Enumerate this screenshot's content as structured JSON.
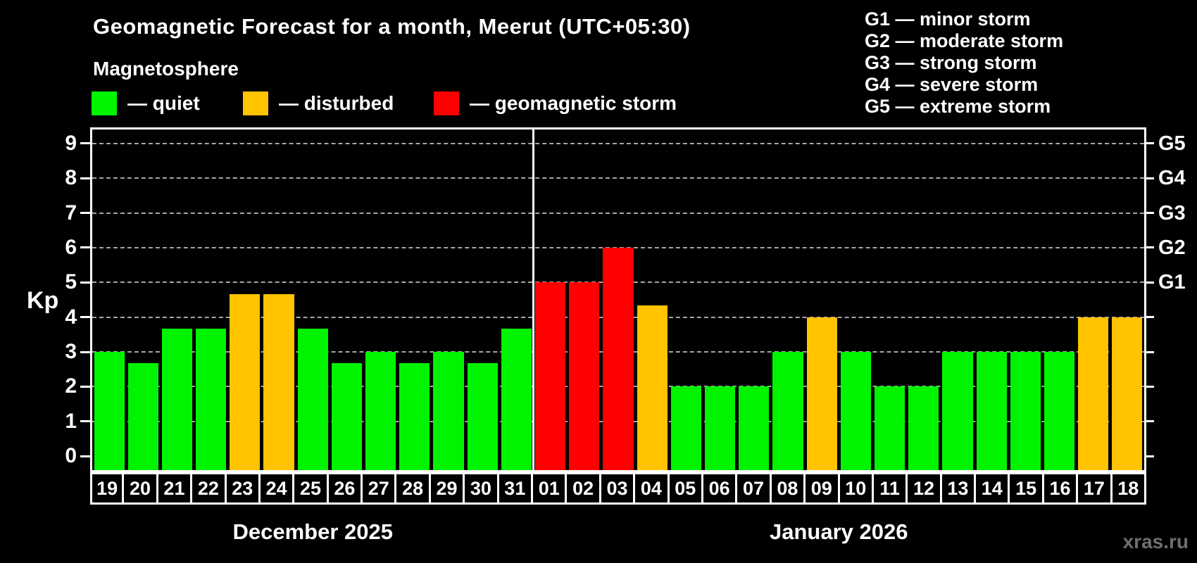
{
  "header": {
    "title": "Geomagnetic Forecast for a month, Meerut (UTC+05:30)",
    "subtitle": "Magnetosphere"
  },
  "legend": {
    "items": [
      {
        "label": "— quiet",
        "state": "quiet"
      },
      {
        "label": "— disturbed",
        "state": "disturbed"
      },
      {
        "label": "— geomagnetic storm",
        "state": "storm"
      }
    ]
  },
  "storm_scale": [
    "G1 — minor storm",
    "G2 — moderate storm",
    "G3 — strong storm",
    "G4 — severe storm",
    "G5 — extreme storm"
  ],
  "watermark": "xras.ru",
  "chart_data": {
    "type": "bar",
    "title": "Geomagnetic Forecast for a month, Meerut (UTC+05:30)",
    "ylabel": "Kp",
    "ylim": [
      -0.4,
      9.4
    ],
    "yticks": [
      0,
      1,
      2,
      3,
      4,
      5,
      6,
      7,
      8,
      9
    ],
    "grid": "dashed horizontal at Kp 1-9",
    "legend_position": "top-left",
    "colors": {
      "quiet": "#00f400",
      "disturbed": "#ffc300",
      "storm": "#ff0000"
    },
    "right_axis_labels": [
      {
        "label": "G1",
        "kp": 5
      },
      {
        "label": "G2",
        "kp": 6
      },
      {
        "label": "G3",
        "kp": 7
      },
      {
        "label": "G4",
        "kp": 8
      },
      {
        "label": "G5",
        "kp": 9
      }
    ],
    "months": [
      {
        "label": "December 2025",
        "days": [
          {
            "day": "19",
            "kp": 3,
            "state": "quiet"
          },
          {
            "day": "20",
            "kp": 2.67,
            "state": "quiet"
          },
          {
            "day": "21",
            "kp": 3.67,
            "state": "quiet"
          },
          {
            "day": "22",
            "kp": 3.67,
            "state": "quiet"
          },
          {
            "day": "23",
            "kp": 4.67,
            "state": "disturbed"
          },
          {
            "day": "24",
            "kp": 4.67,
            "state": "disturbed"
          },
          {
            "day": "25",
            "kp": 3.67,
            "state": "quiet"
          },
          {
            "day": "26",
            "kp": 2.67,
            "state": "quiet"
          },
          {
            "day": "27",
            "kp": 3,
            "state": "quiet"
          },
          {
            "day": "28",
            "kp": 2.67,
            "state": "quiet"
          },
          {
            "day": "29",
            "kp": 3,
            "state": "quiet"
          },
          {
            "day": "30",
            "kp": 2.67,
            "state": "quiet"
          },
          {
            "day": "31",
            "kp": 3.67,
            "state": "quiet"
          }
        ]
      },
      {
        "label": "January 2026",
        "days": [
          {
            "day": "01",
            "kp": 5,
            "state": "storm"
          },
          {
            "day": "02",
            "kp": 5,
            "state": "storm"
          },
          {
            "day": "03",
            "kp": 6,
            "state": "storm"
          },
          {
            "day": "04",
            "kp": 4.33,
            "state": "disturbed"
          },
          {
            "day": "05",
            "kp": 2,
            "state": "quiet"
          },
          {
            "day": "06",
            "kp": 2,
            "state": "quiet"
          },
          {
            "day": "07",
            "kp": 2,
            "state": "quiet"
          },
          {
            "day": "08",
            "kp": 3,
            "state": "quiet"
          },
          {
            "day": "09",
            "kp": 4,
            "state": "disturbed"
          },
          {
            "day": "10",
            "kp": 3,
            "state": "quiet"
          },
          {
            "day": "11",
            "kp": 2,
            "state": "quiet"
          },
          {
            "day": "12",
            "kp": 2,
            "state": "quiet"
          },
          {
            "day": "13",
            "kp": 3,
            "state": "quiet"
          },
          {
            "day": "14",
            "kp": 3,
            "state": "quiet"
          },
          {
            "day": "15",
            "kp": 3,
            "state": "quiet"
          },
          {
            "day": "16",
            "kp": 3,
            "state": "quiet"
          },
          {
            "day": "17",
            "kp": 4,
            "state": "disturbed"
          },
          {
            "day": "18",
            "kp": 4,
            "state": "disturbed"
          }
        ]
      }
    ]
  }
}
